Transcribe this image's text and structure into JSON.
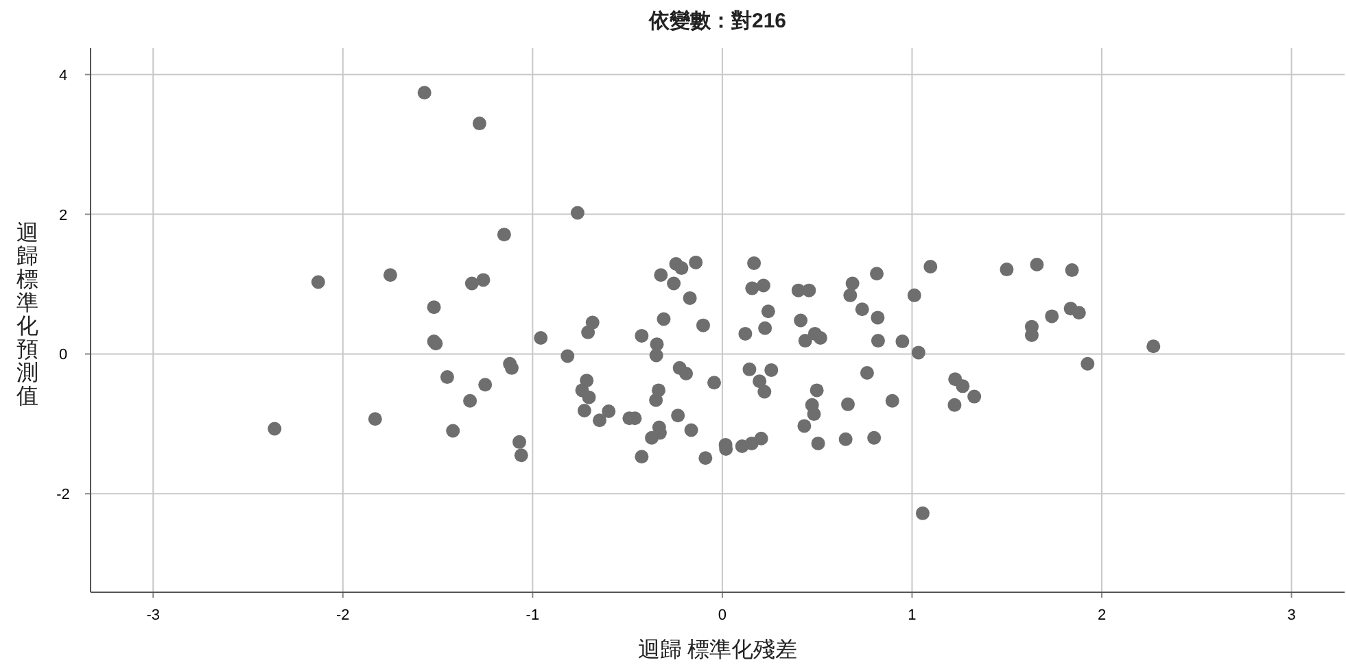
{
  "chart_data": {
    "type": "scatter",
    "title": "依變數：對216",
    "xlabel": "迴歸 標準化殘差",
    "ylabel": "迴歸標準化預測值",
    "x": [
      -1.57,
      -1.28,
      -1.15,
      -2.13,
      -1.75,
      -1.32,
      -1.26,
      -1.52,
      -1.52,
      -1.51,
      -1.12,
      -1.11,
      -1.45,
      -1.25,
      -1.33,
      -2.36,
      -1.83,
      -1.42,
      -1.07,
      -1.06,
      -0.763,
      -0.957,
      -0.816,
      -0.708,
      -0.684,
      -0.715,
      -0.739,
      -0.703,
      -0.727,
      -0.647,
      -0.599,
      -0.49,
      -0.461,
      -0.425,
      -0.425,
      -0.372,
      -0.333,
      -0.329,
      -0.35,
      -0.336,
      -0.345,
      -0.348,
      -0.324,
      -0.309,
      -0.256,
      -0.244,
      -0.215,
      -0.14,
      -0.171,
      -0.101,
      -0.234,
      -0.225,
      -0.191,
      -0.164,
      -0.089,
      -0.043,
      0.017,
      0.019,
      0.104,
      0.155,
      0.205,
      0.121,
      0.143,
      0.167,
      0.157,
      0.217,
      0.242,
      0.225,
      0.196,
      0.222,
      0.258,
      0.401,
      0.457,
      0.413,
      0.437,
      0.488,
      0.517,
      0.498,
      0.473,
      0.483,
      0.432,
      0.505,
      0.65,
      0.662,
      0.674,
      0.686,
      0.737,
      0.763,
      0.8,
      0.814,
      0.819,
      0.821,
      0.896,
      0.949,
      1.012,
      1.034,
      1.056,
      1.097,
      1.499,
      1.658,
      1.843,
      1.631,
      1.631,
      1.737,
      1.836,
      1.88,
      2.272,
      1.925,
      1.227,
      1.267,
      1.224,
      1.328
    ],
    "values": [
      3.74,
      3.3,
      1.71,
      1.03,
      1.13,
      1.01,
      1.06,
      0.67,
      0.18,
      0.15,
      -0.14,
      -0.2,
      -0.33,
      -0.44,
      -0.67,
      -1.07,
      -0.93,
      -1.1,
      -1.26,
      -1.45,
      2.02,
      0.23,
      -0.03,
      0.31,
      0.45,
      -0.38,
      -0.52,
      -0.62,
      -0.81,
      -0.95,
      -0.82,
      -0.92,
      -0.92,
      0.26,
      -1.47,
      -1.2,
      -1.05,
      -1.13,
      -0.66,
      -0.52,
      0.14,
      -0.02,
      1.13,
      0.5,
      1.01,
      1.29,
      1.23,
      1.31,
      0.8,
      0.41,
      -0.88,
      -0.2,
      -0.28,
      -1.09,
      -1.49,
      -0.41,
      -1.3,
      -1.36,
      -1.32,
      -1.28,
      -1.21,
      0.29,
      -0.22,
      1.3,
      0.94,
      0.98,
      0.61,
      0.37,
      -0.39,
      -0.54,
      -0.23,
      0.91,
      0.91,
      0.48,
      0.19,
      0.29,
      0.23,
      -0.52,
      -0.73,
      -0.86,
      -1.03,
      -1.28,
      -1.22,
      -0.72,
      0.84,
      1.01,
      0.64,
      -0.27,
      -1.2,
      1.15,
      0.52,
      0.19,
      -0.67,
      0.18,
      0.84,
      0.02,
      -2.28,
      1.25,
      1.21,
      1.28,
      1.2,
      0.39,
      0.27,
      0.54,
      0.65,
      0.59,
      0.11,
      -0.14,
      -0.36,
      -0.46,
      -0.73,
      -0.61
    ],
    "color": "#6e6e6e",
    "marker": "circle",
    "grid": true,
    "xlim": [
      -3.33,
      3.28
    ],
    "ylim": [
      -3.41,
      4.38
    ],
    "xticks": [
      -3,
      -2,
      -1,
      0,
      1,
      2,
      3
    ],
    "yticks": [
      -2,
      0,
      2,
      4
    ]
  }
}
